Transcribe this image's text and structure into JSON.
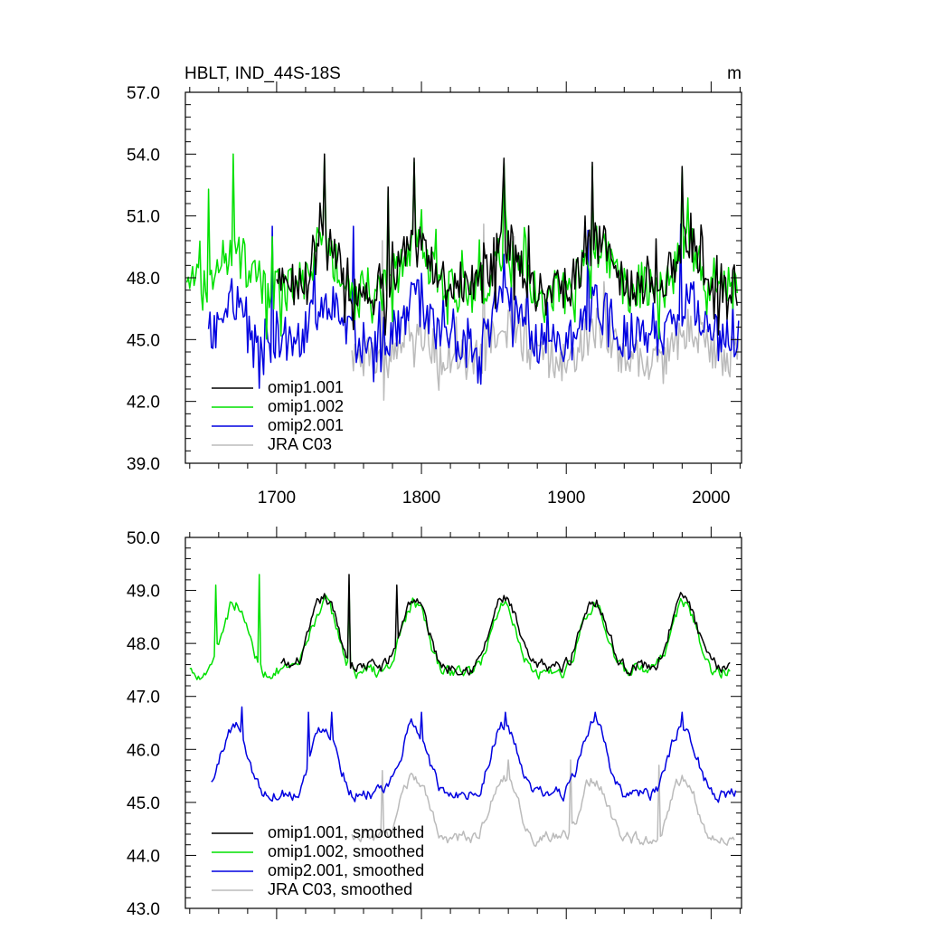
{
  "chart_data": [
    {
      "type": "line",
      "title": "HBLT, IND_44S-18S",
      "units": "m",
      "xlim": [
        1637,
        2021
      ],
      "ylim": [
        39.0,
        57.0
      ],
      "yticks": [
        "39.0",
        "42.0",
        "45.0",
        "48.0",
        "51.0",
        "54.0",
        "57.0"
      ],
      "xticks": [
        "1700",
        "1800",
        "1900",
        "2000"
      ],
      "series": [
        {
          "name": "omip1.001",
          "color": "#000000",
          "start": 1700,
          "end": 2018,
          "base": 48.3,
          "amp": 1.4,
          "noise": 1.6,
          "peaks": [
            [
              1733,
              54.0
            ],
            [
              1777,
              52.4
            ],
            [
              1795,
              53.8
            ],
            [
              1857,
              53.8
            ],
            [
              1918,
              53.6
            ],
            [
              1980,
              53.4
            ]
          ]
        },
        {
          "name": "omip1.002",
          "color": "#00e000",
          "start": 1638,
          "end": 2018,
          "base": 48.1,
          "amp": 1.4,
          "noise": 1.6,
          "peaks": [
            [
              1653,
              52.3
            ],
            [
              1670,
              54.0
            ],
            [
              1733,
              53.8
            ],
            [
              1777,
              52.2
            ],
            [
              1795,
              53.6
            ],
            [
              1857,
              53.6
            ],
            [
              1918,
              53.4
            ],
            [
              1980,
              53.3
            ]
          ]
        },
        {
          "name": "omip2.001",
          "color": "#0000e0",
          "start": 1653,
          "end": 2019,
          "base": 45.6,
          "amp": 1.3,
          "noise": 1.6,
          "peaks": [
            [
              1697,
              50.5
            ],
            [
              1753,
              50.5
            ],
            [
              1915,
              50.3
            ],
            [
              1979,
              50.6
            ]
          ]
        },
        {
          "name": "JRA C03",
          "color": "#bbbbbb",
          "start": 1752,
          "end": 2019,
          "base": 44.6,
          "amp": 1.1,
          "noise": 1.5,
          "peaks": [
            [
              1773,
              49.8
            ],
            [
              1843,
              50.6
            ],
            [
              1864,
              50.0
            ]
          ]
        }
      ]
    },
    {
      "type": "line",
      "xlim": [
        1637,
        2021
      ],
      "ylim": [
        43.0,
        50.0
      ],
      "yticks": [
        "43.0",
        "44.0",
        "45.0",
        "46.0",
        "47.0",
        "48.0",
        "49.0",
        "50.0"
      ],
      "series": [
        {
          "name": "omip1.001, smoothed",
          "color": "#000000",
          "start": 1703,
          "end": 2013,
          "base": 48.0,
          "amp": 0.9,
          "noise": 0.25,
          "peaks": [
            [
              1750,
              49.3
            ],
            [
              1783,
              49.1
            ]
          ]
        },
        {
          "name": "omip1.002, smoothed",
          "color": "#00e000",
          "start": 1640,
          "end": 2013,
          "base": 47.9,
          "amp": 0.9,
          "noise": 0.25,
          "peaks": [
            [
              1688,
              49.3
            ],
            [
              1658,
              49.1
            ],
            [
              1750,
              49.1
            ]
          ]
        },
        {
          "name": "omip2.001, smoothed",
          "color": "#0000e0",
          "start": 1655,
          "end": 2017,
          "base": 45.6,
          "amp": 0.9,
          "noise": 0.25,
          "peaks": [
            [
              1676,
              46.8
            ],
            [
              1722,
              46.7
            ],
            [
              1738,
              46.7
            ],
            [
              1800,
              46.7
            ],
            [
              1858,
              46.7
            ],
            [
              1920,
              46.7
            ],
            [
              1980,
              46.7
            ]
          ]
        },
        {
          "name": "JRA C03, smoothed",
          "color": "#bbbbbb",
          "start": 1752,
          "end": 2016,
          "base": 44.7,
          "amp": 0.8,
          "noise": 0.25,
          "peaks": [
            [
              1773,
              45.6
            ],
            [
              1860,
              45.8
            ],
            [
              1903,
              45.8
            ],
            [
              1964,
              45.7
            ]
          ]
        }
      ]
    }
  ]
}
